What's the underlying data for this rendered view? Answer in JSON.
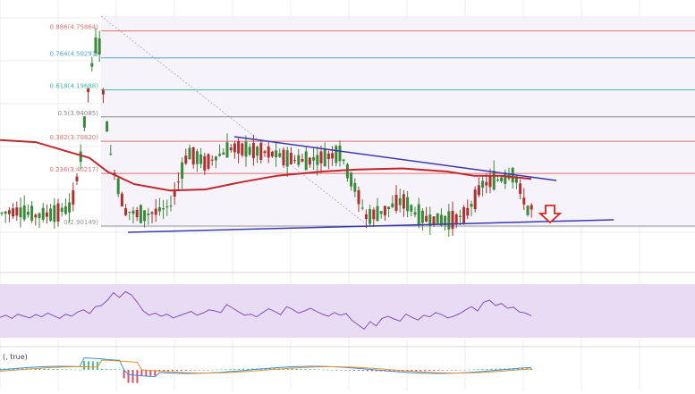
{
  "chart_data": [
    {
      "type": "candlestick",
      "panel": "price",
      "fib_levels": [
        {
          "label": "0.886(4.75864)",
          "ratio": 0.886,
          "value": 4.75864
        },
        {
          "label": "0.764(4.50291)",
          "ratio": 0.764,
          "value": 4.50291
        },
        {
          "label": "0.618(4.19688)",
          "ratio": 0.618,
          "value": 4.19688
        },
        {
          "label": "0.5(3.94085)",
          "ratio": 0.5,
          "value": 3.94085
        },
        {
          "label": "0.382(3.70820)",
          "ratio": 0.382,
          "value": 3.7082
        },
        {
          "label": "0.236(3.40217)",
          "ratio": 0.236,
          "value": 3.40217
        },
        {
          "label": "0(2.90149)",
          "ratio": 0,
          "value": 2.90149
        }
      ],
      "fib_colors": [
        "#e07070",
        "#4da6d6",
        "#3cb8a0",
        "#888888",
        "#e07070",
        "#e07070",
        "#999999"
      ],
      "ylim": [
        2.4,
        5.4
      ],
      "candle_colors": {
        "up": "#3a8a3a",
        "down": "#b03030"
      },
      "moving_average_color": "#c0282d",
      "trendline_color": "#3a3ab0",
      "arrow_color": "#e02020",
      "arrow_icon": "down-arrow-icon"
    },
    {
      "type": "line",
      "panel": "oscillator",
      "color": "#8a4dbf",
      "band_color": "#e8dcf5",
      "values": [
        38,
        42,
        36,
        44,
        40,
        37,
        43,
        39,
        46,
        41,
        36,
        44,
        40,
        48,
        52,
        45,
        58,
        60,
        70,
        84,
        75,
        86,
        80,
        66,
        50,
        42,
        46,
        40,
        44,
        37,
        41,
        45,
        49,
        42,
        46,
        52,
        50,
        47,
        62,
        55,
        48,
        42,
        44,
        39,
        47,
        54,
        49,
        43,
        58,
        53,
        46,
        50,
        55,
        49,
        44,
        40,
        47,
        42,
        45,
        32,
        24,
        16,
        30,
        22,
        36,
        40,
        35,
        31,
        44,
        38,
        33,
        42,
        39,
        47,
        43,
        37,
        40,
        45,
        52,
        58,
        50,
        66,
        70,
        60,
        64,
        55,
        57,
        48,
        46,
        41
      ]
    },
    {
      "type": "line",
      "panel": "macd",
      "legend_text": "(, true)",
      "colors": {
        "macd": "#3a8fd6",
        "signal": "#e09030",
        "hist_up": "#4fbf8f",
        "hist_down": "#d9506a"
      }
    }
  ]
}
